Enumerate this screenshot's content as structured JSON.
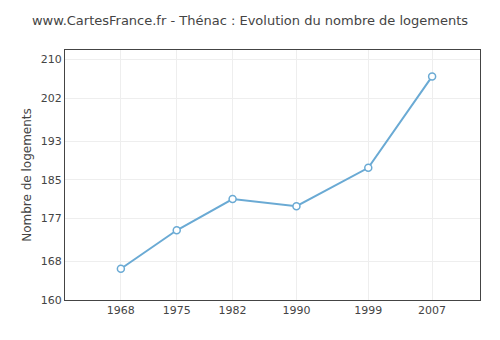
{
  "chart_data": {
    "type": "line",
    "title": "www.CartesFrance.fr - Thénac : Evolution du nombre de logements",
    "ylabel": "Nombre de logements",
    "x": [
      1968,
      1975,
      1982,
      1990,
      1999,
      2007
    ],
    "values": [
      166.5,
      174.5,
      181.0,
      179.5,
      187.5,
      206.5
    ],
    "xlim": [
      1961,
      2013
    ],
    "ylim": [
      160,
      212
    ],
    "xticks": [
      1968,
      1975,
      1982,
      1990,
      1999,
      2007
    ],
    "yticks": [
      160,
      168,
      177,
      185,
      193,
      202,
      210
    ],
    "grid": true,
    "color": "#6aaad4",
    "marker": "circle"
  }
}
